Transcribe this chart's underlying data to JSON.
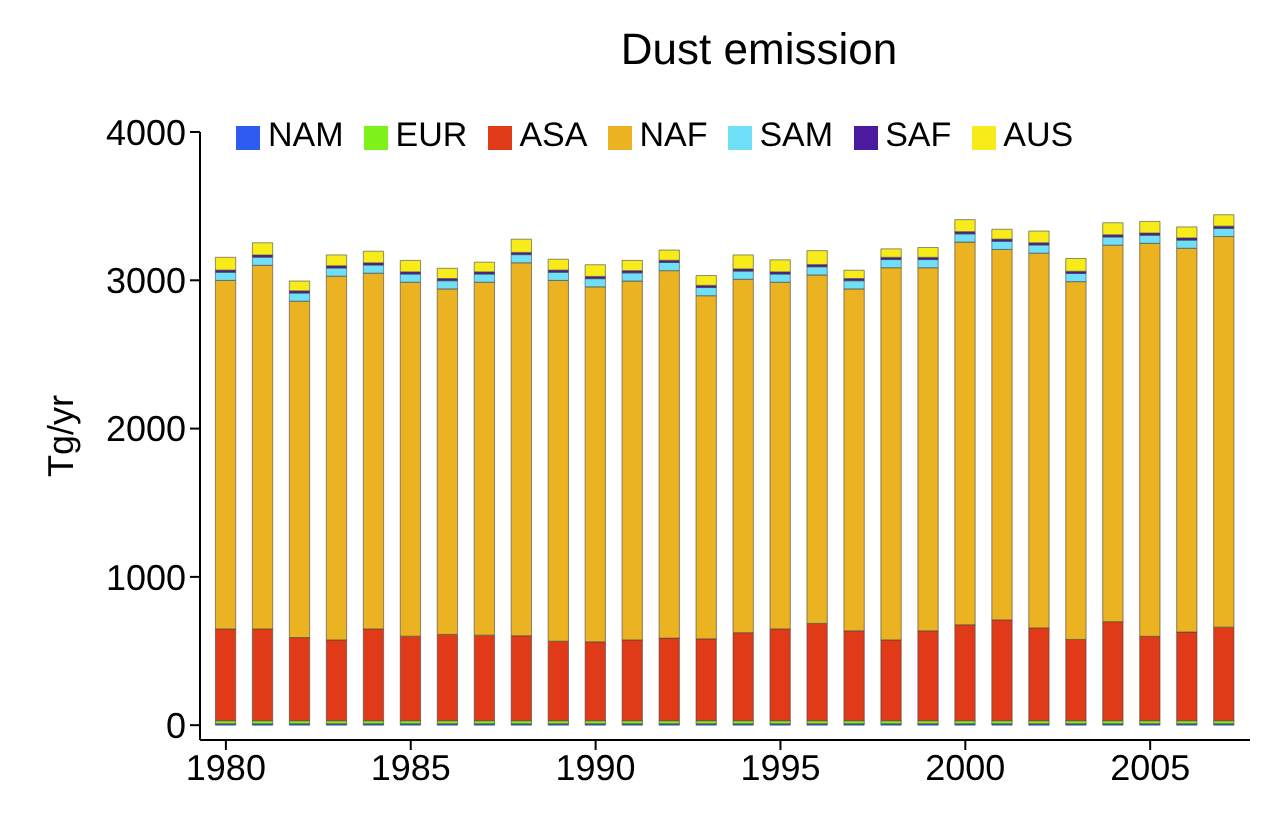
{
  "chart_data": {
    "type": "bar",
    "title": "Dust emission",
    "ylabel": "Tg/yr",
    "stacked": true,
    "legend": "top",
    "x": [
      1980,
      1981,
      1982,
      1983,
      1984,
      1985,
      1986,
      1987,
      1988,
      1989,
      1990,
      1991,
      1992,
      1993,
      1994,
      1995,
      1996,
      1997,
      1998,
      1999,
      2000,
      2001,
      2002,
      2003,
      2004,
      2005,
      2006,
      2007
    ],
    "xlim": [
      1979.3,
      2007.7
    ],
    "xticks": [
      1980,
      1985,
      1990,
      1995,
      2000,
      2005
    ],
    "ylim": [
      -100,
      4000
    ],
    "yticks": [
      0,
      1000,
      2000,
      3000,
      4000
    ],
    "series": [
      {
        "name": "NAM",
        "color": "#2f5cf0",
        "values": [
          10,
          10,
          10,
          10,
          10,
          10,
          10,
          10,
          10,
          10,
          10,
          10,
          10,
          10,
          10,
          10,
          10,
          10,
          10,
          10,
          10,
          10,
          10,
          10,
          10,
          10,
          10,
          10
        ]
      },
      {
        "name": "EUR",
        "color": "#7ef01a",
        "values": [
          20,
          20,
          20,
          20,
          20,
          20,
          20,
          20,
          20,
          20,
          20,
          20,
          20,
          20,
          20,
          20,
          20,
          20,
          20,
          20,
          20,
          20,
          20,
          20,
          20,
          20,
          20,
          20
        ]
      },
      {
        "name": "ASA",
        "color": "#e03a18",
        "values": [
          619,
          619,
          561,
          545,
          619,
          570,
          582,
          577,
          573,
          536,
          532,
          545,
          557,
          552,
          594,
          619,
          656,
          606,
          545,
          606,
          647,
          680,
          626,
          548,
          668,
          569,
          598,
          631
        ]
      },
      {
        "name": "NAF",
        "color": "#ebb221",
        "values": [
          2350,
          2452,
          2268,
          2453,
          2399,
          2387,
          2330,
          2380,
          2515,
          2433,
          2394,
          2420,
          2478,
          2314,
          2383,
          2338,
          2350,
          2306,
          2510,
          2449,
          2581,
          2498,
          2527,
          2413,
          2539,
          2650,
          2588,
          2634
        ]
      },
      {
        "name": "SAM",
        "color": "#6fe0f8",
        "values": [
          55,
          55,
          55,
          55,
          55,
          55,
          55,
          55,
          55,
          55,
          55,
          55,
          55,
          55,
          55,
          55,
          55,
          55,
          55,
          55,
          55,
          55,
          55,
          55,
          55,
          55,
          55,
          55
        ]
      },
      {
        "name": "SAF",
        "color": "#4b1a9e",
        "values": [
          15,
          15,
          15,
          15,
          15,
          15,
          15,
          15,
          15,
          15,
          15,
          15,
          15,
          15,
          15,
          15,
          15,
          15,
          15,
          15,
          15,
          15,
          15,
          15,
          15,
          15,
          15,
          15
        ]
      },
      {
        "name": "AUS",
        "color": "#f7ec1a",
        "values": [
          86,
          82,
          66,
          73,
          78,
          77,
          69,
          65,
          89,
          73,
          79,
          69,
          69,
          66,
          94,
          81,
          94,
          56,
          57,
          66,
          81,
          66,
          79,
          86,
          81,
          78,
          74,
          77
        ]
      }
    ]
  }
}
